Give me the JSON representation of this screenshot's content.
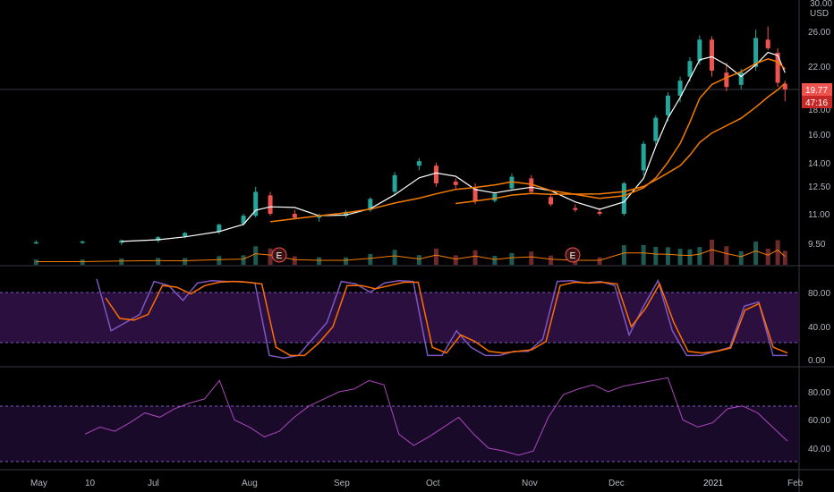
{
  "chart_data": {
    "type": "candlestick",
    "currency": "USD",
    "price_axis": {
      "scale": "log",
      "ticks": [
        "30.00",
        "26.00",
        "22.00",
        "18.00",
        "16.00",
        "14.00",
        "12.50",
        "11.00",
        "9.50"
      ]
    },
    "x_tick_labels": [
      "May",
      "10",
      "Jul",
      "Aug",
      "Sep",
      "Oct",
      "Nov",
      "Dec",
      "2021",
      "Feb"
    ],
    "last_price": "19.77",
    "countdown": "47:16",
    "colors": {
      "up": "#26a69a",
      "down": "#ef5350",
      "ma_fast": "#ffffff",
      "ma_mid": "#f57c00",
      "ma_slow": "#f57c00",
      "stoch_k": "#7e57c2",
      "stoch_d": "#ff6d00",
      "rsi": "#ab47bc",
      "band": "#2a0f3f"
    },
    "earnings_markers": [
      "E",
      "E"
    ],
    "candles": [
      {
        "x": "2020-05-01",
        "o": 9.6,
        "h": 9.7,
        "l": 9.55,
        "c": 9.62
      },
      {
        "x": "2020-05-20",
        "o": 9.6,
        "h": 9.7,
        "l": 9.55,
        "c": 9.65
      },
      {
        "x": "2020-06-05",
        "o": 9.6,
        "h": 9.75,
        "l": 9.5,
        "c": 9.7
      },
      {
        "x": "2020-06-20",
        "o": 9.7,
        "h": 9.9,
        "l": 9.6,
        "c": 9.85
      },
      {
        "x": "2020-07-01",
        "o": 9.9,
        "h": 10.1,
        "l": 9.8,
        "c": 10.05
      },
      {
        "x": "2020-07-15",
        "o": 10.1,
        "h": 10.5,
        "l": 10.0,
        "c": 10.45
      },
      {
        "x": "2020-07-25",
        "o": 10.5,
        "h": 11.0,
        "l": 10.4,
        "c": 10.9
      },
      {
        "x": "2020-07-30",
        "o": 10.9,
        "h": 12.5,
        "l": 10.8,
        "c": 12.2
      },
      {
        "x": "2020-08-05",
        "o": 12.0,
        "h": 12.2,
        "l": 10.9,
        "c": 11.0
      },
      {
        "x": "2020-08-15",
        "o": 11.0,
        "h": 11.2,
        "l": 10.7,
        "c": 10.8
      },
      {
        "x": "2020-08-25",
        "o": 10.8,
        "h": 11.0,
        "l": 10.6,
        "c": 10.9
      },
      {
        "x": "2020-09-05",
        "o": 10.9,
        "h": 11.2,
        "l": 10.8,
        "c": 11.1
      },
      {
        "x": "2020-09-15",
        "o": 11.2,
        "h": 11.9,
        "l": 11.1,
        "c": 11.8
      },
      {
        "x": "2020-09-25",
        "o": 12.2,
        "h": 13.4,
        "l": 12.0,
        "c": 13.2
      },
      {
        "x": "2020-10-05",
        "o": 13.8,
        "h": 14.3,
        "l": 13.5,
        "c": 14.1
      },
      {
        "x": "2020-10-12",
        "o": 13.8,
        "h": 14.0,
        "l": 12.5,
        "c": 12.7
      },
      {
        "x": "2020-10-20",
        "o": 12.8,
        "h": 13.0,
        "l": 12.3,
        "c": 12.6
      },
      {
        "x": "2020-10-28",
        "o": 12.4,
        "h": 12.7,
        "l": 11.5,
        "c": 11.7
      },
      {
        "x": "2020-11-05",
        "o": 11.7,
        "h": 12.2,
        "l": 11.6,
        "c": 12.1
      },
      {
        "x": "2020-11-12",
        "o": 12.4,
        "h": 13.3,
        "l": 12.3,
        "c": 13.1
      },
      {
        "x": "2020-11-20",
        "o": 13.0,
        "h": 13.2,
        "l": 12.1,
        "c": 12.2
      },
      {
        "x": "2020-11-28",
        "o": 11.9,
        "h": 12.0,
        "l": 11.4,
        "c": 11.5
      },
      {
        "x": "2020-12-08",
        "o": 11.3,
        "h": 11.5,
        "l": 11.1,
        "c": 11.2
      },
      {
        "x": "2020-12-18",
        "o": 11.1,
        "h": 11.3,
        "l": 10.9,
        "c": 11.0
      },
      {
        "x": "2020-12-28",
        "o": 11.0,
        "h": 12.8,
        "l": 10.9,
        "c": 12.7
      },
      {
        "x": "2021-01-05",
        "o": 13.5,
        "h": 15.5,
        "l": 13.2,
        "c": 15.3
      },
      {
        "x": "2021-01-10",
        "o": 15.5,
        "h": 17.5,
        "l": 15.2,
        "c": 17.3
      },
      {
        "x": "2021-01-15",
        "o": 17.5,
        "h": 19.5,
        "l": 17.0,
        "c": 19.2
      },
      {
        "x": "2021-01-20",
        "o": 19.2,
        "h": 21.0,
        "l": 18.6,
        "c": 20.6
      },
      {
        "x": "2021-01-24",
        "o": 21.0,
        "h": 23.0,
        "l": 20.5,
        "c": 22.6
      },
      {
        "x": "2021-01-28",
        "o": 22.6,
        "h": 25.5,
        "l": 22.2,
        "c": 25.0
      },
      {
        "x": "2021-02-02",
        "o": 25.0,
        "h": 25.4,
        "l": 21.0,
        "c": 21.6
      },
      {
        "x": "2021-02-08",
        "o": 21.4,
        "h": 22.4,
        "l": 19.6,
        "c": 20.0
      },
      {
        "x": "2021-02-14",
        "o": 20.2,
        "h": 21.8,
        "l": 19.8,
        "c": 21.4
      },
      {
        "x": "2021-02-20",
        "o": 22.0,
        "h": 26.2,
        "l": 21.6,
        "c": 25.2
      },
      {
        "x": "2021-02-25",
        "o": 25.0,
        "h": 26.6,
        "l": 23.8,
        "c": 24.0
      },
      {
        "x": "2021-03-01",
        "o": 23.5,
        "h": 24.0,
        "l": 20.0,
        "c": 20.4
      },
      {
        "x": "2021-03-04",
        "o": 20.3,
        "h": 20.6,
        "l": 18.7,
        "c": 19.77
      }
    ],
    "stoch_axis": {
      "ticks": [
        "80.00",
        "40.00",
        "0.00"
      ]
    },
    "stoch_k": [
      98,
      35,
      45,
      55,
      95,
      90,
      72,
      93,
      96,
      95,
      95,
      93,
      5,
      2,
      5,
      25,
      45,
      95,
      92,
      82,
      93,
      96,
      95,
      5,
      5,
      35,
      15,
      5,
      5,
      10,
      10,
      25,
      95,
      96,
      93,
      95,
      90,
      30,
      65,
      96,
      35,
      5,
      5,
      10,
      15,
      65,
      70,
      5,
      5
    ],
    "stoch_d": [
      75,
      50,
      48,
      55,
      90,
      88,
      80,
      90,
      94,
      95,
      94,
      92,
      15,
      5,
      5,
      20,
      40,
      90,
      90,
      86,
      90,
      94,
      94,
      15,
      8,
      30,
      22,
      10,
      8,
      10,
      12,
      22,
      90,
      94,
      93,
      94,
      92,
      40,
      62,
      92,
      45,
      10,
      8,
      10,
      14,
      60,
      68,
      15,
      8
    ],
    "rsi_axis": {
      "ticks": [
        "80.00",
        "60.00",
        "40.00"
      ]
    },
    "rsi": [
      50,
      55,
      52,
      58,
      65,
      62,
      68,
      72,
      75,
      88,
      60,
      55,
      48,
      52,
      62,
      70,
      75,
      80,
      82,
      88,
      85,
      50,
      42,
      48,
      55,
      62,
      50,
      40,
      38,
      35,
      38,
      62,
      78,
      82,
      85,
      80,
      84,
      86,
      88,
      90,
      60,
      55,
      58,
      68,
      70,
      65,
      55,
      45
    ]
  }
}
